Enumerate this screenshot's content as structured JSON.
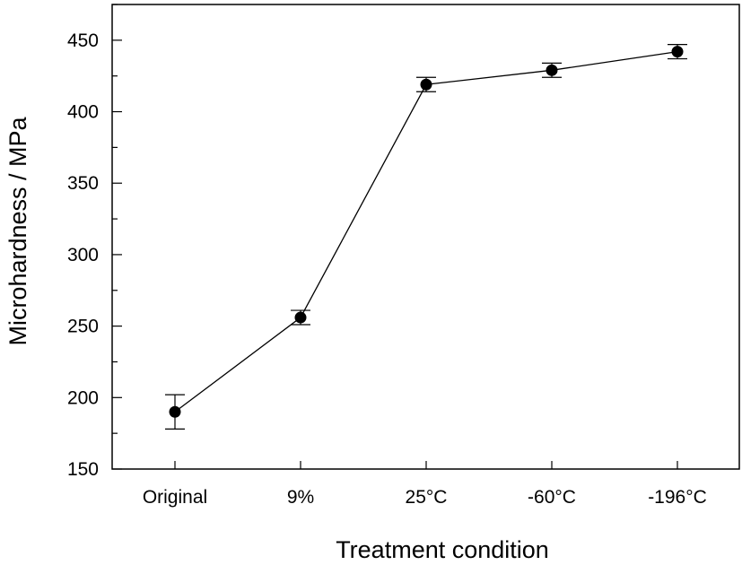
{
  "chart_data": {
    "type": "line",
    "title": "",
    "xlabel": "Treatment condition",
    "ylabel": "Microhardness / MPa",
    "categories": [
      "Original",
      "9%",
      "25°C",
      "-60°C",
      "-196°C"
    ],
    "ylim": [
      150,
      475
    ],
    "yticks": [
      150,
      200,
      250,
      300,
      350,
      400,
      450
    ],
    "y_minor_step": 25,
    "grid": false,
    "legend": "none",
    "series": [
      {
        "values": [
          190,
          256,
          419,
          429,
          442
        ],
        "error_low": [
          178,
          251,
          414,
          424,
          437
        ],
        "error_high": [
          202,
          261,
          424,
          434,
          447
        ],
        "marker": "filled-circle",
        "color": "#000000"
      }
    ]
  }
}
